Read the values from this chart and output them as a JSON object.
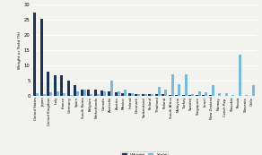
{
  "categories": [
    "United States",
    "Japan",
    "United Kingdom",
    "Italy",
    "France",
    "Germany",
    "Spain",
    "South Korea",
    "Belgium",
    "Netherlands",
    "Canada",
    "Australia",
    "Austria",
    "Mexico",
    "Ireland",
    "Denmark",
    "Switzerland",
    "Finland",
    "Thailand",
    "Poland",
    "South Africa",
    "Malaysia",
    "Turkey",
    "Sweden",
    "Singapore",
    "Israel",
    "New Zealand",
    "Norway",
    "Czech Rep.",
    "Slovakia",
    "Russia",
    "Slovenia",
    "Chile"
  ],
  "weight": [
    27.5,
    25.5,
    8.0,
    6.8,
    6.8,
    5.2,
    3.5,
    2.2,
    2.2,
    2.0,
    1.8,
    1.5,
    1.3,
    1.1,
    0.9,
    0.7,
    0.7,
    0.7,
    0.65,
    0.6,
    0.5,
    0.5,
    0.45,
    0.4,
    0.35,
    0.3,
    0.25,
    0.2,
    0.15,
    0.1,
    0.1,
    0.05,
    0.05
  ],
  "yield": [
    1.0,
    0.8,
    1.2,
    1.5,
    1.0,
    0.5,
    1.5,
    2.0,
    0.8,
    0.6,
    1.5,
    5.0,
    1.5,
    2.0,
    1.0,
    0.8,
    0.7,
    0.8,
    3.0,
    2.0,
    7.0,
    4.0,
    7.0,
    0.8,
    1.5,
    1.2,
    3.5,
    1.0,
    1.0,
    0.5,
    13.5,
    0.5,
    3.7
  ],
  "weight_color": "#1c3557",
  "yield_color": "#7ab9d8",
  "ylabel": "Weight or Yield (%)",
  "ylim": [
    0,
    30
  ],
  "yticks": [
    0,
    5,
    10,
    15,
    20,
    25,
    30
  ],
  "legend_weight": "Weight",
  "legend_yield": "Yield",
  "bg_color": "#f2f2ee"
}
